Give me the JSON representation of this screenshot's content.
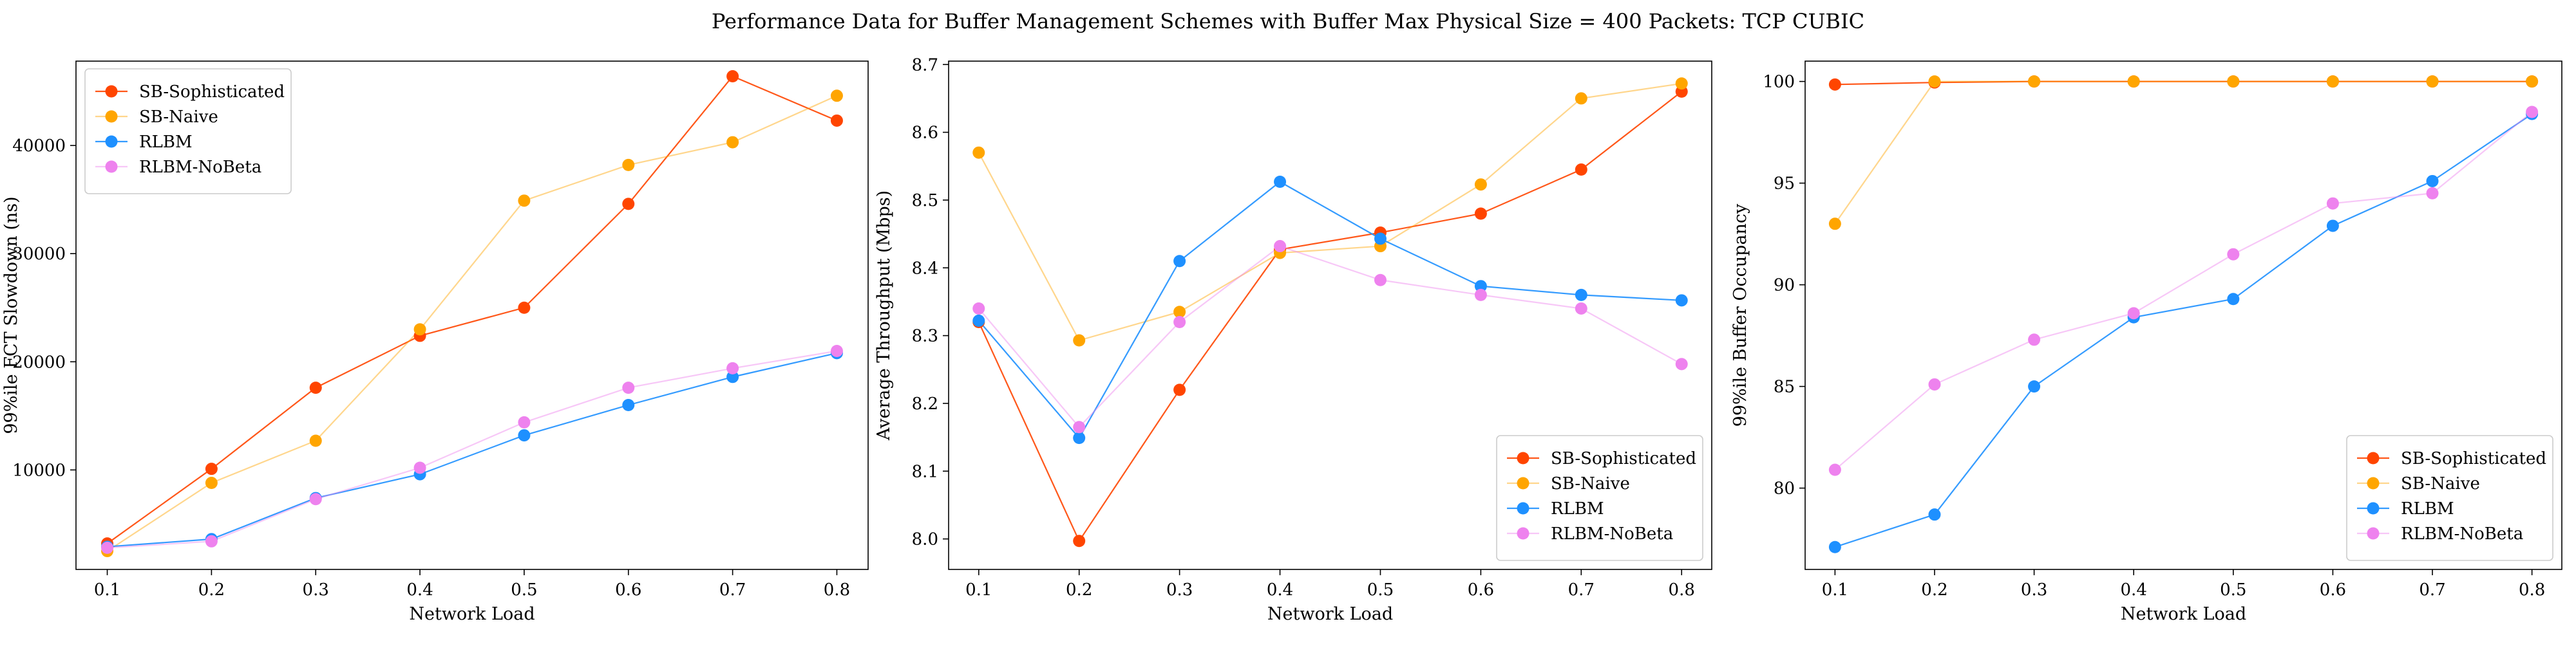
{
  "figure": {
    "title": "Performance Data for Buffer Management Schemes with Buffer Max Physical Size = 400 Packets: TCP CUBIC"
  },
  "chart_data": [
    {
      "type": "line",
      "title": "",
      "xlabel": "Network Load",
      "ylabel": "99%ile FCT Slowdown (ns)",
      "xlim": [
        0.07,
        0.83
      ],
      "ylim": [
        800,
        47800
      ],
      "xticks": [
        0.1,
        0.2,
        0.3,
        0.4,
        0.5,
        0.6,
        0.7,
        0.8
      ],
      "yticks": [
        10000,
        20000,
        30000,
        40000
      ],
      "grid": false,
      "legend_position": "upper-left",
      "x": [
        0.1,
        0.2,
        0.3,
        0.4,
        0.5,
        0.6,
        0.7,
        0.8
      ],
      "series": [
        {
          "name": "SB-Sophisticated",
          "color": "#FF4500",
          "values": [
            3200,
            10100,
            17600,
            22400,
            25000,
            34600,
            46400,
            42300
          ]
        },
        {
          "name": "SB-Naive",
          "color": "#FFA500",
          "values": [
            2500,
            8800,
            12700,
            23000,
            34900,
            38200,
            40300,
            44600
          ]
        },
        {
          "name": "RLBM",
          "color": "#1E90FF",
          "values": [
            2900,
            3600,
            7400,
            9600,
            13200,
            16000,
            18600,
            20800
          ]
        },
        {
          "name": "RLBM-NoBeta",
          "color": "#EE82EE",
          "values": [
            2800,
            3400,
            7300,
            10200,
            14400,
            17600,
            19400,
            21000
          ]
        }
      ]
    },
    {
      "type": "line",
      "title": "",
      "xlabel": "Network Load",
      "ylabel": "Average Throughput (Mbps)",
      "xlim": [
        0.07,
        0.83
      ],
      "ylim": [
        7.955,
        8.705
      ],
      "xticks": [
        0.1,
        0.2,
        0.3,
        0.4,
        0.5,
        0.6,
        0.7,
        0.8
      ],
      "yticks": [
        8.0,
        8.1,
        8.2,
        8.3,
        8.4,
        8.5,
        8.6,
        8.7
      ],
      "ytick_labels": [
        "8.0",
        "8.1",
        "8.2",
        "8.3",
        "8.4",
        "8.5",
        "8.6",
        "8.7"
      ],
      "grid": false,
      "legend_position": "lower-right",
      "x": [
        0.1,
        0.2,
        0.3,
        0.4,
        0.5,
        0.6,
        0.7,
        0.8
      ],
      "series": [
        {
          "name": "SB-Sophisticated",
          "color": "#FF4500",
          "values": [
            8.32,
            7.997,
            8.22,
            8.427,
            8.452,
            8.48,
            8.545,
            8.66
          ]
        },
        {
          "name": "SB-Naive",
          "color": "#FFA500",
          "values": [
            8.57,
            8.293,
            8.335,
            8.422,
            8.432,
            8.523,
            8.65,
            8.672
          ]
        },
        {
          "name": "RLBM",
          "color": "#1E90FF",
          "values": [
            8.322,
            8.149,
            8.41,
            8.527,
            8.443,
            8.373,
            8.36,
            8.352
          ]
        },
        {
          "name": "RLBM-NoBeta",
          "color": "#EE82EE",
          "values": [
            8.34,
            8.165,
            8.32,
            8.432,
            8.382,
            8.36,
            8.34,
            8.258
          ]
        }
      ]
    },
    {
      "type": "line",
      "title": "",
      "xlabel": "Network Load",
      "ylabel": "99%ile Buffer Occupancy",
      "xlim": [
        0.07,
        0.83
      ],
      "ylim": [
        76.0,
        101.0
      ],
      "xticks": [
        0.1,
        0.2,
        0.3,
        0.4,
        0.5,
        0.6,
        0.7,
        0.8
      ],
      "yticks": [
        80,
        85,
        90,
        95,
        100
      ],
      "grid": false,
      "legend_position": "lower-right",
      "x": [
        0.1,
        0.2,
        0.3,
        0.4,
        0.5,
        0.6,
        0.7,
        0.8
      ],
      "series": [
        {
          "name": "SB-Sophisticated",
          "color": "#FF4500",
          "values": [
            99.85,
            99.95,
            100.0,
            100.0,
            100.0,
            100.0,
            100.0,
            100.0
          ]
        },
        {
          "name": "SB-Naive",
          "color": "#FFA500",
          "values": [
            93.0,
            100.0,
            100.0,
            100.0,
            100.0,
            100.0,
            100.0,
            100.0
          ]
        },
        {
          "name": "RLBM",
          "color": "#1E90FF",
          "values": [
            77.1,
            78.7,
            85.0,
            88.4,
            89.3,
            92.9,
            95.1,
            98.4
          ]
        },
        {
          "name": "RLBM-NoBeta",
          "color": "#EE82EE",
          "values": [
            80.9,
            85.1,
            87.3,
            88.6,
            91.5,
            94.0,
            94.5,
            98.5
          ]
        }
      ]
    }
  ]
}
